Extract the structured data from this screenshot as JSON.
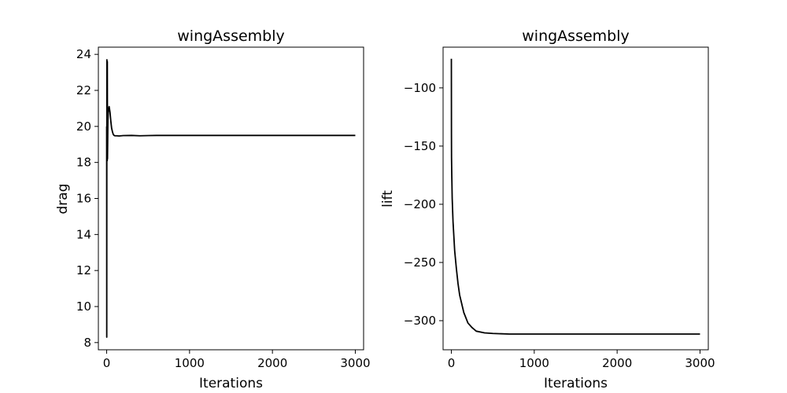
{
  "chart_data": [
    {
      "type": "line",
      "title": "wingAssembly",
      "xlabel": "Iterations",
      "ylabel": "drag",
      "xlim": [
        -100,
        3100
      ],
      "ylim": [
        7.6,
        24.4
      ],
      "xticks": [
        0,
        1000,
        2000,
        3000
      ],
      "xtick_labels": [
        "0",
        "1000",
        "2000",
        "3000"
      ],
      "yticks": [
        8,
        10,
        12,
        14,
        16,
        18,
        20,
        22,
        24
      ],
      "ytick_labels": [
        "8",
        "10",
        "12",
        "14",
        "16",
        "18",
        "20",
        "22",
        "24"
      ],
      "series": [
        {
          "color": "#000000",
          "x": [
            0,
            1,
            2,
            3,
            4,
            5,
            6,
            7,
            8,
            9,
            10,
            12,
            15,
            20,
            25,
            30,
            40,
            50,
            60,
            70,
            80,
            90,
            100,
            120,
            150,
            200,
            300,
            400,
            500,
            600,
            800,
            1000,
            1500,
            2000,
            2500,
            3000
          ],
          "y": [
            20.0,
            8.3,
            18.2,
            23.7,
            19.5,
            18.1,
            21.0,
            18.1,
            23.6,
            20.9,
            18.2,
            19.0,
            20.3,
            20.8,
            21.0,
            21.1,
            20.8,
            20.3,
            19.9,
            19.7,
            19.55,
            19.5,
            19.48,
            19.48,
            19.47,
            19.49,
            19.5,
            19.48,
            19.49,
            19.5,
            19.5,
            19.5,
            19.5,
            19.5,
            19.5,
            19.5
          ]
        }
      ]
    },
    {
      "type": "line",
      "title": "wingAssembly",
      "xlabel": "Iterations",
      "ylabel": "lift",
      "xlim": [
        -100,
        3100
      ],
      "ylim": [
        -325,
        -65
      ],
      "xticks": [
        0,
        1000,
        2000,
        3000
      ],
      "xtick_labels": [
        "0",
        "1000",
        "2000",
        "3000"
      ],
      "yticks": [
        -300,
        -250,
        -200,
        -150,
        -100
      ],
      "ytick_labels": [
        "−300",
        "−250",
        "−200",
        "−150",
        "−100"
      ],
      "series": [
        {
          "color": "#000000",
          "x": [
            0,
            1,
            2,
            5,
            10,
            20,
            40,
            60,
            80,
            100,
            150,
            200,
            250,
            300,
            400,
            500,
            700,
            1000,
            1500,
            2000,
            2500,
            3000
          ],
          "y": [
            -75,
            -140,
            -160,
            -175,
            -195,
            -215,
            -240,
            -255,
            -268,
            -278,
            -293,
            -302,
            -306,
            -309,
            -310.5,
            -311,
            -311.5,
            -311.5,
            -311.5,
            -311.5,
            -311.5,
            -311.5
          ]
        }
      ]
    }
  ]
}
